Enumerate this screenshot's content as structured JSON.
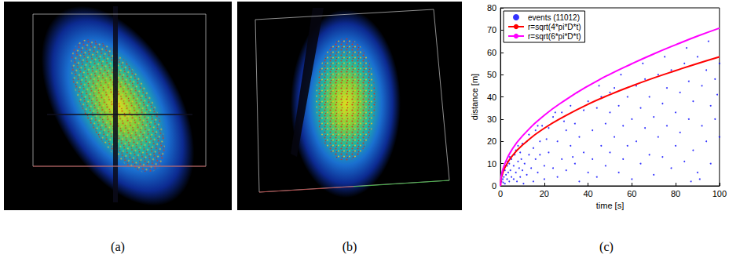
{
  "panel_labels": [
    "(a)",
    "(b)",
    "(c)"
  ],
  "chart_data": {
    "type": "scatter",
    "xlabel": "time [s]",
    "ylabel": "distance [m]",
    "xlim": [
      0,
      100
    ],
    "xticks": [
      0,
      20,
      40,
      60,
      80,
      100
    ],
    "ylim": [
      0,
      80
    ],
    "yticks": [
      0,
      10,
      20,
      30,
      40,
      50,
      60,
      70,
      80
    ],
    "grid": false,
    "legend": "upper left",
    "series": [
      {
        "name": "events (11012)",
        "type": "scatter",
        "color": "#0000ff",
        "marker": "dot",
        "x": [
          0.5,
          1,
          1,
          1.5,
          2,
          2,
          2.5,
          3,
          3,
          3.5,
          4,
          4,
          4.5,
          5,
          5,
          0.8,
          1.2,
          3.2,
          4.2,
          2.2,
          6,
          6,
          6.5,
          7,
          7,
          7.5,
          8,
          8,
          8.5,
          9,
          9,
          9.5,
          10,
          10,
          10.5,
          11,
          12,
          12,
          13,
          13,
          14,
          15,
          15,
          16,
          16,
          17,
          18,
          18,
          19,
          20,
          20,
          17,
          22,
          22,
          24,
          24,
          26,
          26,
          28,
          28,
          30,
          30,
          32,
          32,
          34,
          34,
          36,
          36,
          38,
          38,
          40,
          40,
          25,
          35,
          21,
          29,
          33,
          42,
          42,
          44,
          44,
          46,
          46,
          48,
          48,
          50,
          50,
          52,
          52,
          54,
          54,
          56,
          56,
          58,
          58,
          60,
          60,
          45,
          55,
          50,
          62,
          62,
          64,
          64,
          66,
          66,
          68,
          68,
          70,
          70,
          72,
          72,
          74,
          74,
          76,
          76,
          78,
          78,
          80,
          80,
          65,
          75,
          82,
          82,
          84,
          84,
          86,
          86,
          88,
          88,
          90,
          90,
          92,
          92,
          94,
          94,
          96,
          96,
          98,
          98,
          100,
          100,
          85,
          95,
          91,
          87,
          99
        ],
        "values": [
          2,
          3,
          6,
          4,
          1,
          7,
          5,
          3,
          9,
          6,
          2,
          10,
          7,
          4,
          12,
          5,
          1.5,
          11,
          13,
          9,
          3,
          9,
          14,
          6,
          16,
          2,
          11,
          18,
          8,
          4,
          15,
          12,
          7,
          19,
          1,
          10,
          5,
          20,
          14,
          23,
          8,
          17,
          2,
          12,
          25,
          6,
          20,
          14,
          27,
          9,
          3,
          27,
          15,
          26,
          8,
          31,
          20,
          4,
          12,
          33,
          25,
          7,
          18,
          36,
          28,
          10,
          2,
          22,
          34,
          15,
          6,
          38,
          33,
          42,
          21,
          29,
          13,
          25,
          12,
          35,
          4,
          18,
          40,
          28,
          9,
          33,
          15,
          44,
          22,
          6,
          36,
          27,
          12,
          40,
          18,
          30,
          3,
          45,
          50,
          42,
          45,
          20,
          10,
          35,
          26,
          48,
          14,
          40,
          31,
          5,
          22,
          50,
          37,
          13,
          44,
          27,
          8,
          52,
          33,
          18,
          55,
          58,
          42,
          24,
          11,
          55,
          30,
          47,
          16,
          38,
          58,
          6,
          27,
          45,
          52,
          20,
          36,
          10,
          48,
          30,
          22,
          55,
          62,
          65,
          3,
          2,
          41
        ]
      },
      {
        "name": "r=sqrt(4*pi*D*t)",
        "type": "line",
        "color": "#ff0000",
        "line_style": "solid",
        "x": [
          0,
          0.25,
          0.5,
          1,
          2,
          5,
          10,
          20,
          30,
          40,
          50,
          60,
          70,
          80,
          90,
          100
        ],
        "values": [
          0,
          2.9,
          4.1,
          5.8,
          8.2,
          13,
          18.3,
          25.9,
          31.7,
          36.7,
          41,
          44.9,
          48.5,
          51.8,
          55,
          58
        ]
      },
      {
        "name": "r=sqrt(6*pi*D*t)",
        "type": "line",
        "color": "#ff00ff",
        "line_style": "solid",
        "x": [
          0,
          0.25,
          0.5,
          1,
          2,
          5,
          10,
          20,
          30,
          40,
          50,
          60,
          70,
          80,
          90,
          100
        ],
        "values": [
          0,
          3.5,
          5,
          7.1,
          10,
          15.9,
          22.4,
          31.7,
          38.8,
          44.9,
          50.2,
          54.9,
          59.3,
          63.4,
          67.3,
          70.9
        ]
      }
    ]
  }
}
